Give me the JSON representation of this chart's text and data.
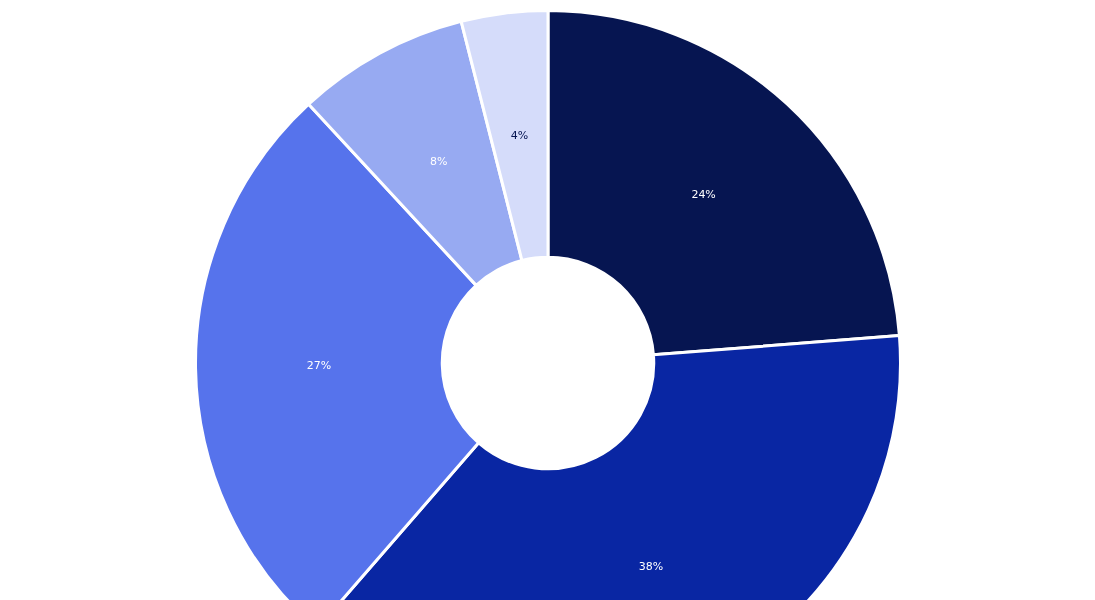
{
  "chart_data": {
    "type": "donut",
    "categories": [
      null,
      null,
      null,
      null,
      null
    ],
    "values": [
      24,
      38,
      27,
      8,
      4
    ],
    "colors": [
      "#061551",
      "#0926a3",
      "#5673ec",
      "#97aaf2",
      "#d5dcfa"
    ],
    "value_labels": [
      "24%",
      "38%",
      "27%",
      "8%",
      "4%"
    ]
  }
}
